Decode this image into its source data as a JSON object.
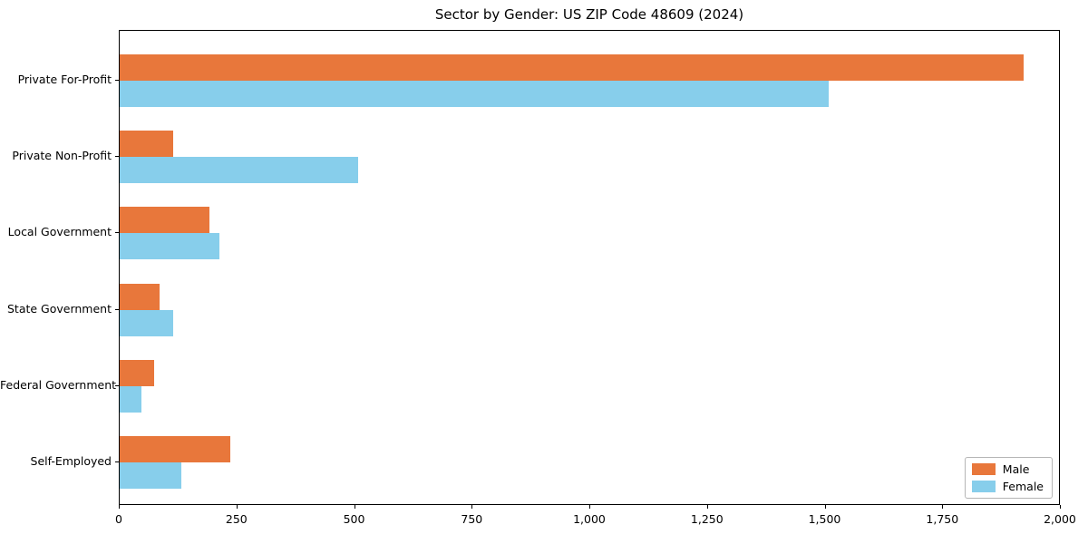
{
  "title": "Sector by Gender: US ZIP Code 48609 (2024)",
  "chart_data": {
    "type": "bar",
    "orientation": "horizontal",
    "title": "Sector by Gender: US ZIP Code 48609 (2024)",
    "categories": [
      "Private For-Profit",
      "Private Non-Profit",
      "Local Government",
      "State Government",
      "Federal Government",
      "Self-Employed"
    ],
    "series": [
      {
        "name": "Male",
        "color": "#e8773b",
        "values": [
          1920,
          113,
          190,
          84,
          73,
          235
        ]
      },
      {
        "name": "Female",
        "color": "#87ceeb",
        "values": [
          1507,
          507,
          212,
          114,
          46,
          130
        ]
      }
    ],
    "xlabel": "",
    "ylabel": "",
    "xlim": [
      0,
      2000
    ],
    "xticks": [
      0,
      250,
      500,
      750,
      1000,
      1250,
      1500,
      1750,
      2000
    ],
    "xtick_labels": [
      "0",
      "250",
      "500",
      "750",
      "1,000",
      "1,250",
      "1,500",
      "1,750",
      "2,000"
    ],
    "legend_position": "lower right",
    "grid": false,
    "background": "#ffffff",
    "spine_color": "#000000"
  }
}
